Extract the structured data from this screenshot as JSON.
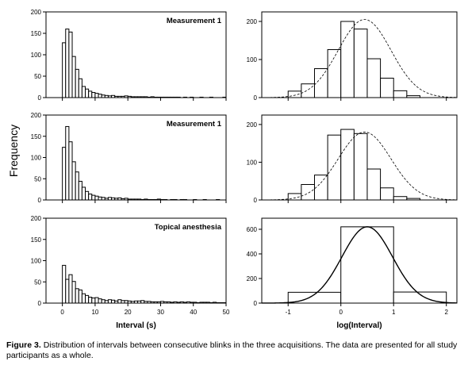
{
  "figure": {
    "ylabel": "Frequency",
    "caption_label": "Figure 3.",
    "caption_text": "Distribution of intervals between consecutive blinks in the three acquisitions. The data are presented for all study participants as a whole."
  },
  "chart_data": [
    {
      "id": "h1",
      "type": "bar",
      "title": "Measurement 1",
      "xlabel": "",
      "ylabel": "Frequency",
      "xlim": [
        -5,
        50
      ],
      "ylim": [
        0,
        200
      ],
      "xticks": [
        0,
        10,
        20,
        30,
        40,
        50
      ],
      "yticks": [
        0,
        50,
        100,
        150,
        200
      ],
      "show_x_tick_labels": false,
      "bin_start": 0,
      "bin_width": 1,
      "values": [
        128,
        160,
        153,
        96,
        66,
        44,
        26,
        20,
        15,
        12,
        10,
        8,
        6,
        5,
        4,
        5,
        3,
        3,
        3,
        4,
        3,
        2,
        2,
        2,
        2,
        2,
        1,
        2,
        1,
        1,
        1,
        1,
        1,
        1,
        1,
        1,
        0,
        1,
        0,
        1,
        0,
        0,
        1,
        0,
        0,
        1,
        0,
        0,
        0,
        1
      ]
    },
    {
      "id": "h2",
      "type": "bar",
      "title": "Measurement 1",
      "xlabel": "",
      "ylabel": "Frequency",
      "xlim": [
        -5,
        50
      ],
      "ylim": [
        0,
        200
      ],
      "xticks": [
        0,
        10,
        20,
        30,
        40,
        50
      ],
      "yticks": [
        0,
        50,
        100,
        150,
        200
      ],
      "show_x_tick_labels": false,
      "bin_start": 0,
      "bin_width": 1,
      "values": [
        124,
        173,
        137,
        90,
        66,
        44,
        30,
        20,
        14,
        11,
        9,
        7,
        6,
        4,
        6,
        5,
        4,
        5,
        3,
        4,
        2,
        2,
        2,
        2,
        1,
        2,
        1,
        1,
        1,
        2,
        1,
        1,
        0,
        1,
        1,
        0,
        1,
        1,
        0,
        0,
        1,
        0,
        0,
        1,
        0,
        0,
        0,
        1,
        0,
        0
      ]
    },
    {
      "id": "h3",
      "type": "bar",
      "title": "Topical anesthesia",
      "xlabel": "Interval (s)",
      "ylabel": "Frequency",
      "xlim": [
        -5,
        50
      ],
      "ylim": [
        0,
        200
      ],
      "xticks": [
        0,
        10,
        20,
        30,
        40,
        50
      ],
      "yticks": [
        0,
        50,
        100,
        150,
        200
      ],
      "show_x_tick_labels": true,
      "bin_start": 0,
      "bin_width": 1,
      "values": [
        89,
        56,
        67,
        51,
        34,
        31,
        22,
        18,
        14,
        12,
        13,
        10,
        8,
        6,
        8,
        7,
        5,
        8,
        6,
        6,
        5,
        4,
        5,
        5,
        6,
        4,
        4,
        3,
        3,
        3,
        4,
        3,
        3,
        2,
        3,
        2,
        3,
        2,
        3,
        2,
        2,
        1,
        2,
        2,
        2,
        1,
        2,
        1,
        1,
        1
      ]
    },
    {
      "id": "l1",
      "type": "bar",
      "title": "",
      "xlabel": "",
      "ylabel": "",
      "xlim": [
        -1.5,
        2.2
      ],
      "ylim": [
        0,
        225
      ],
      "xticks": [
        -1,
        0,
        1,
        2
      ],
      "yticks": [
        0,
        100,
        200
      ],
      "show_x_tick_labels": false,
      "bin_start": -1.0,
      "bin_width": 0.25,
      "values": [
        17,
        36,
        76,
        126,
        200,
        180,
        102,
        51,
        18,
        5
      ],
      "fit_curve": {
        "type": "normal",
        "mean": 0.45,
        "sd": 0.5,
        "peak": 205,
        "style": "dashed"
      }
    },
    {
      "id": "l2",
      "type": "bar",
      "title": "",
      "xlabel": "",
      "ylabel": "",
      "xlim": [
        -1.5,
        2.2
      ],
      "ylim": [
        0,
        225
      ],
      "xticks": [
        -1,
        0,
        1,
        2
      ],
      "yticks": [
        0,
        100,
        200
      ],
      "show_x_tick_labels": false,
      "bin_start": -1.0,
      "bin_width": 0.25,
      "values": [
        17,
        41,
        66,
        172,
        187,
        176,
        82,
        32,
        9,
        4
      ],
      "fit_curve": {
        "type": "normal",
        "mean": 0.45,
        "sd": 0.5,
        "peak": 180,
        "style": "dashed"
      }
    },
    {
      "id": "l3",
      "type": "bar",
      "title": "",
      "xlabel": "log(Interval)",
      "ylabel": "",
      "xlim": [
        -1.5,
        2.2
      ],
      "ylim": [
        0,
        690
      ],
      "xticks": [
        -1,
        0,
        1,
        2
      ],
      "yticks": [
        0,
        200,
        400,
        600
      ],
      "show_x_tick_labels": true,
      "bin_start": -1.0,
      "bin_width": 1.0,
      "values": [
        88,
        620,
        90
      ],
      "fit_curve": {
        "type": "normal",
        "mean": 0.5,
        "sd": 0.48,
        "peak": 620,
        "style": "solid"
      }
    }
  ]
}
